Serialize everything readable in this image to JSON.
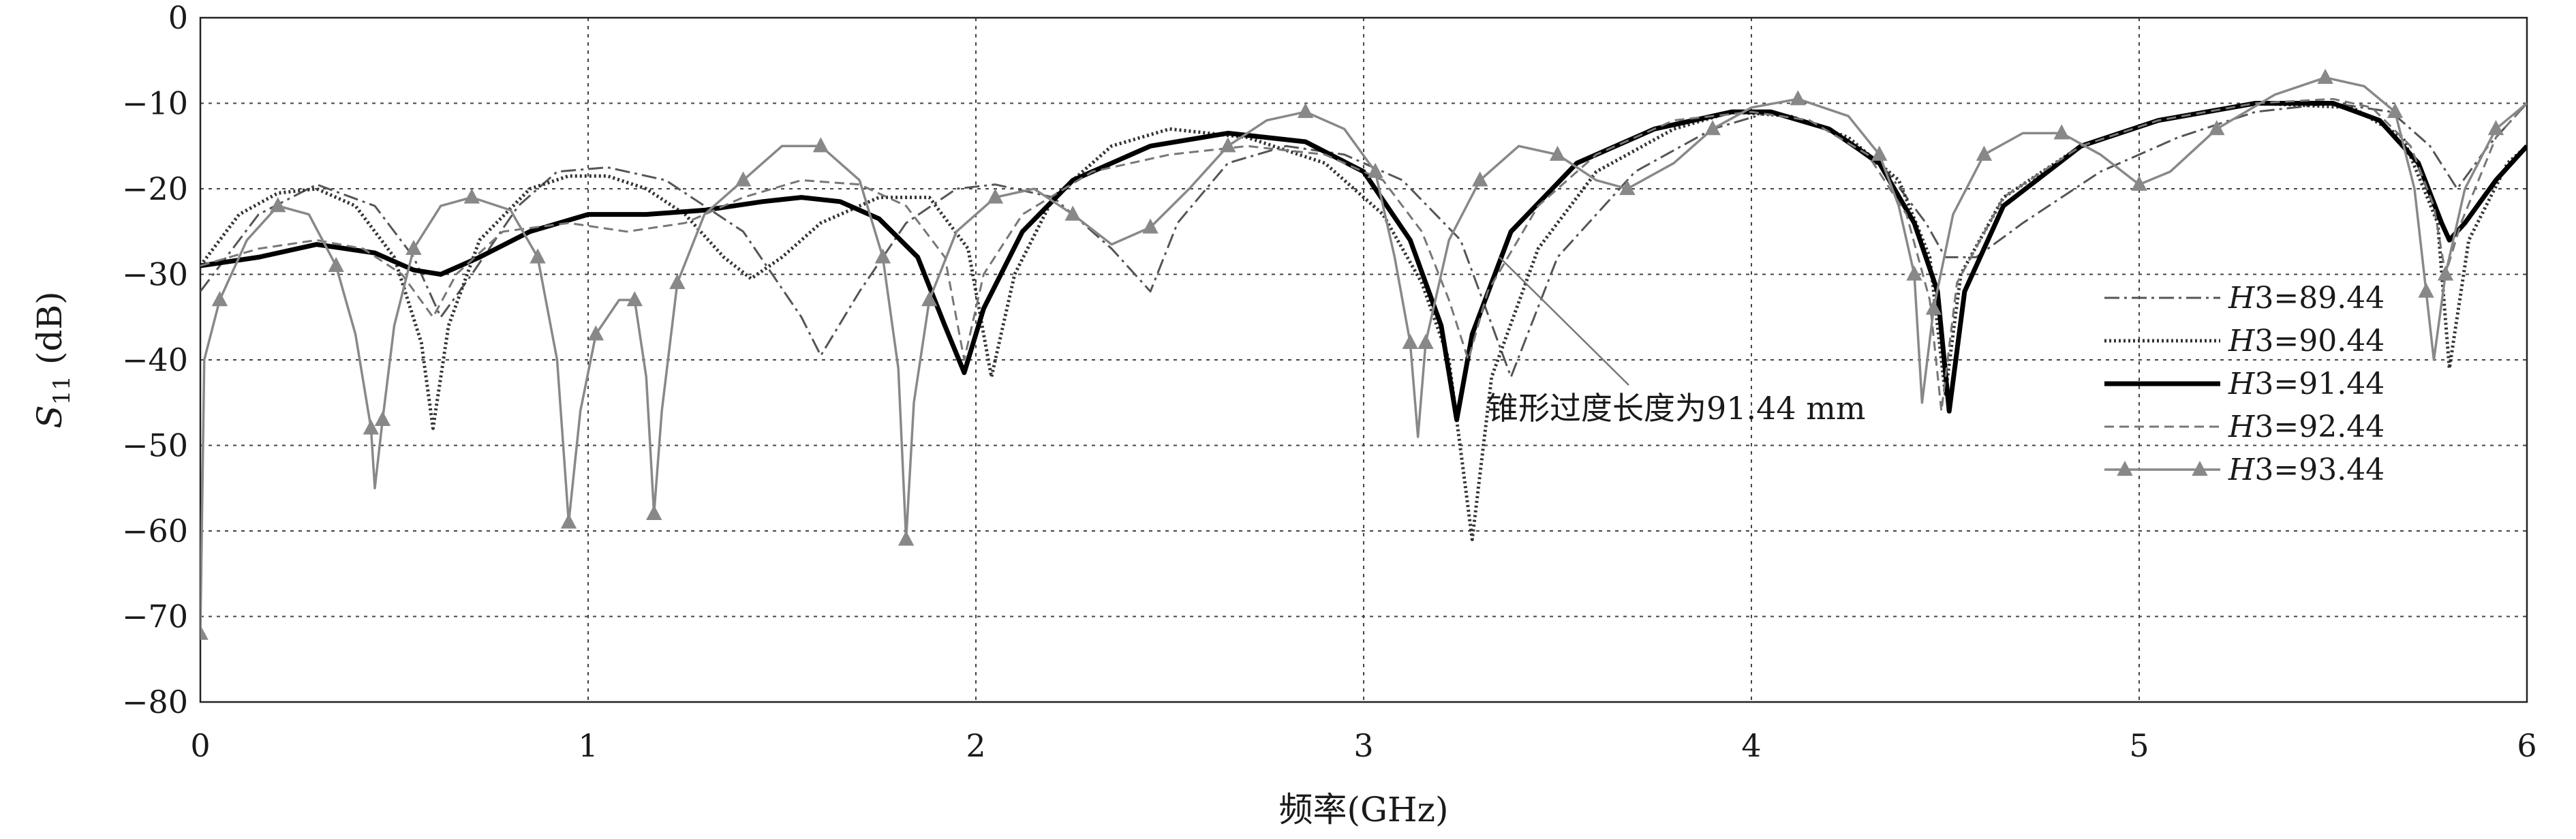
{
  "chart_data": {
    "type": "line",
    "xlabel": "频率(GHz)",
    "ylabel": "S11 (dB)",
    "ylabel_parts": {
      "main": "S",
      "sub": "11",
      "unit": " (dB)"
    },
    "xlim": [
      0,
      6
    ],
    "ylim": [
      -80,
      0
    ],
    "xticks": [
      0,
      1,
      2,
      3,
      4,
      5,
      6
    ],
    "yticks": [
      0,
      -10,
      -20,
      -30,
      -40,
      -50,
      -60,
      -70,
      -80
    ],
    "grid": true,
    "legend_position": "right",
    "annotation": {
      "text": "锥形过度长度为91.44 mm",
      "points_to": {
        "x": 3.35,
        "y": -28
      }
    },
    "series": [
      {
        "name": "H3=89.44",
        "legend_parts": {
          "italic": "H",
          "rest": "3=89.44"
        },
        "color": "#555555",
        "style": "dashdot",
        "points": [
          [
            0,
            -32
          ],
          [
            0.15,
            -23
          ],
          [
            0.3,
            -19.5
          ],
          [
            0.45,
            -22
          ],
          [
            0.55,
            -28
          ],
          [
            0.62,
            -35
          ],
          [
            0.7,
            -30
          ],
          [
            0.82,
            -22
          ],
          [
            0.92,
            -18
          ],
          [
            1.05,
            -17.5
          ],
          [
            1.2,
            -19
          ],
          [
            1.4,
            -25
          ],
          [
            1.55,
            -35
          ],
          [
            1.6,
            -39.5
          ],
          [
            1.7,
            -32
          ],
          [
            1.82,
            -24
          ],
          [
            1.95,
            -20
          ],
          [
            2.05,
            -19.5
          ],
          [
            2.2,
            -21
          ],
          [
            2.35,
            -27
          ],
          [
            2.45,
            -32
          ],
          [
            2.52,
            -24
          ],
          [
            2.65,
            -17
          ],
          [
            2.8,
            -15
          ],
          [
            2.95,
            -16
          ],
          [
            3.1,
            -19
          ],
          [
            3.25,
            -26
          ],
          [
            3.38,
            -42
          ],
          [
            3.5,
            -28
          ],
          [
            3.7,
            -18
          ],
          [
            3.9,
            -13
          ],
          [
            4.05,
            -11
          ],
          [
            4.2,
            -13
          ],
          [
            4.35,
            -18
          ],
          [
            4.45,
            -24
          ],
          [
            4.5,
            -28
          ],
          [
            4.58,
            -28
          ],
          [
            4.7,
            -24
          ],
          [
            4.9,
            -18
          ],
          [
            5.1,
            -14
          ],
          [
            5.3,
            -11
          ],
          [
            5.5,
            -10
          ],
          [
            5.65,
            -11
          ],
          [
            5.75,
            -15
          ],
          [
            5.82,
            -20
          ],
          [
            5.9,
            -15
          ],
          [
            6,
            -10
          ]
        ]
      },
      {
        "name": "H3=90.44",
        "legend_parts": {
          "italic": "H",
          "rest": "3=90.44"
        },
        "color": "#333333",
        "style": "dotted",
        "points": [
          [
            0,
            -29
          ],
          [
            0.1,
            -23
          ],
          [
            0.2,
            -20.5
          ],
          [
            0.3,
            -20
          ],
          [
            0.4,
            -22
          ],
          [
            0.5,
            -28
          ],
          [
            0.57,
            -38
          ],
          [
            0.6,
            -48
          ],
          [
            0.64,
            -36
          ],
          [
            0.72,
            -26
          ],
          [
            0.85,
            -20
          ],
          [
            0.95,
            -18.5
          ],
          [
            1.05,
            -18.5
          ],
          [
            1.15,
            -20
          ],
          [
            1.25,
            -23
          ],
          [
            1.35,
            -28
          ],
          [
            1.42,
            -30.5
          ],
          [
            1.5,
            -28
          ],
          [
            1.6,
            -24
          ],
          [
            1.75,
            -21
          ],
          [
            1.88,
            -21
          ],
          [
            1.98,
            -27
          ],
          [
            2.04,
            -42
          ],
          [
            2.1,
            -30
          ],
          [
            2.2,
            -21
          ],
          [
            2.35,
            -15
          ],
          [
            2.5,
            -13
          ],
          [
            2.7,
            -14
          ],
          [
            2.9,
            -17
          ],
          [
            3.05,
            -23
          ],
          [
            3.15,
            -31
          ],
          [
            3.22,
            -40
          ],
          [
            3.28,
            -61
          ],
          [
            3.33,
            -42
          ],
          [
            3.45,
            -27
          ],
          [
            3.6,
            -18
          ],
          [
            3.8,
            -13
          ],
          [
            3.95,
            -11
          ],
          [
            4.1,
            -11.5
          ],
          [
            4.25,
            -14
          ],
          [
            4.38,
            -19
          ],
          [
            4.46,
            -28
          ],
          [
            4.5,
            -44
          ],
          [
            4.54,
            -30
          ],
          [
            4.65,
            -21
          ],
          [
            4.85,
            -15
          ],
          [
            5.05,
            -12
          ],
          [
            5.3,
            -10
          ],
          [
            5.55,
            -10.5
          ],
          [
            5.68,
            -14
          ],
          [
            5.77,
            -24
          ],
          [
            5.8,
            -41
          ],
          [
            5.85,
            -26
          ],
          [
            5.95,
            -17
          ],
          [
            6,
            -15
          ]
        ]
      },
      {
        "name": "H3=91.44",
        "legend_parts": {
          "italic": "H",
          "rest": "3=91.44"
        },
        "color": "#000000",
        "style": "thick",
        "points": [
          [
            0,
            -29
          ],
          [
            0.15,
            -28
          ],
          [
            0.3,
            -26.5
          ],
          [
            0.45,
            -27.5
          ],
          [
            0.55,
            -29.5
          ],
          [
            0.62,
            -30
          ],
          [
            0.72,
            -28
          ],
          [
            0.85,
            -25
          ],
          [
            1.0,
            -23
          ],
          [
            1.15,
            -23
          ],
          [
            1.3,
            -22.5
          ],
          [
            1.45,
            -21.5
          ],
          [
            1.55,
            -21
          ],
          [
            1.65,
            -21.5
          ],
          [
            1.75,
            -23.5
          ],
          [
            1.85,
            -28
          ],
          [
            1.92,
            -36
          ],
          [
            1.97,
            -41.5
          ],
          [
            2.02,
            -34
          ],
          [
            2.12,
            -25
          ],
          [
            2.25,
            -19
          ],
          [
            2.45,
            -15
          ],
          [
            2.65,
            -13.5
          ],
          [
            2.85,
            -14.5
          ],
          [
            3.0,
            -18
          ],
          [
            3.12,
            -26
          ],
          [
            3.2,
            -36
          ],
          [
            3.24,
            -47
          ],
          [
            3.28,
            -37
          ],
          [
            3.38,
            -25
          ],
          [
            3.55,
            -17
          ],
          [
            3.75,
            -13
          ],
          [
            3.95,
            -11
          ],
          [
            4.05,
            -11
          ],
          [
            4.2,
            -13
          ],
          [
            4.33,
            -17
          ],
          [
            4.42,
            -24
          ],
          [
            4.48,
            -32
          ],
          [
            4.51,
            -46
          ],
          [
            4.55,
            -32
          ],
          [
            4.65,
            -22
          ],
          [
            4.85,
            -15
          ],
          [
            5.05,
            -12
          ],
          [
            5.3,
            -10
          ],
          [
            5.5,
            -10
          ],
          [
            5.62,
            -12
          ],
          [
            5.72,
            -17
          ],
          [
            5.78,
            -24
          ],
          [
            5.8,
            -26
          ],
          [
            5.84,
            -24
          ],
          [
            5.92,
            -19
          ],
          [
            6,
            -15
          ]
        ]
      },
      {
        "name": "H3=92.44",
        "legend_parts": {
          "italic": "H",
          "rest": "3=92.44"
        },
        "color": "#777777",
        "style": "dashed",
        "points": [
          [
            0,
            -29
          ],
          [
            0.15,
            -27
          ],
          [
            0.3,
            -26
          ],
          [
            0.42,
            -27
          ],
          [
            0.52,
            -30
          ],
          [
            0.6,
            -35
          ],
          [
            0.66,
            -30
          ],
          [
            0.78,
            -25
          ],
          [
            0.95,
            -24
          ],
          [
            1.1,
            -25
          ],
          [
            1.25,
            -24
          ],
          [
            1.4,
            -21
          ],
          [
            1.55,
            -19
          ],
          [
            1.7,
            -19.5
          ],
          [
            1.82,
            -22
          ],
          [
            1.92,
            -28
          ],
          [
            1.97,
            -40
          ],
          [
            2.02,
            -30
          ],
          [
            2.12,
            -23
          ],
          [
            2.3,
            -18
          ],
          [
            2.5,
            -16
          ],
          [
            2.7,
            -15
          ],
          [
            2.9,
            -16
          ],
          [
            3.05,
            -19
          ],
          [
            3.15,
            -25
          ],
          [
            3.22,
            -33
          ],
          [
            3.27,
            -40
          ],
          [
            3.32,
            -32
          ],
          [
            3.45,
            -22
          ],
          [
            3.6,
            -16
          ],
          [
            3.8,
            -12
          ],
          [
            4.0,
            -11
          ],
          [
            4.15,
            -12
          ],
          [
            4.3,
            -16
          ],
          [
            4.4,
            -23
          ],
          [
            4.46,
            -33
          ],
          [
            4.49,
            -46
          ],
          [
            4.53,
            -31
          ],
          [
            4.65,
            -21
          ],
          [
            4.85,
            -15
          ],
          [
            5.05,
            -12
          ],
          [
            5.3,
            -10
          ],
          [
            5.5,
            -9.5
          ],
          [
            5.6,
            -10.5
          ],
          [
            5.7,
            -15
          ],
          [
            5.76,
            -22
          ],
          [
            5.79,
            -30
          ],
          [
            5.83,
            -24
          ],
          [
            5.92,
            -14
          ],
          [
            6,
            -10
          ]
        ]
      },
      {
        "name": "H3=93.44",
        "legend_parts": {
          "italic": "H",
          "rest": "3=93.44"
        },
        "color": "#888888",
        "style": "triangle",
        "points": [
          [
            0,
            -72
          ],
          [
            0.01,
            -40
          ],
          [
            0.05,
            -33
          ],
          [
            0.12,
            -26
          ],
          [
            0.2,
            -22
          ],
          [
            0.28,
            -23
          ],
          [
            0.35,
            -29
          ],
          [
            0.4,
            -37
          ],
          [
            0.44,
            -48
          ],
          [
            0.45,
            -55
          ],
          [
            0.47,
            -47
          ],
          [
            0.5,
            -36
          ],
          [
            0.55,
            -27
          ],
          [
            0.62,
            -22
          ],
          [
            0.7,
            -21
          ],
          [
            0.8,
            -22.5
          ],
          [
            0.87,
            -28
          ],
          [
            0.92,
            -40
          ],
          [
            0.95,
            -59
          ],
          [
            0.98,
            -46
          ],
          [
            1.02,
            -37
          ],
          [
            1.08,
            -33
          ],
          [
            1.12,
            -33
          ],
          [
            1.15,
            -42
          ],
          [
            1.17,
            -58
          ],
          [
            1.19,
            -46
          ],
          [
            1.23,
            -31
          ],
          [
            1.3,
            -23
          ],
          [
            1.4,
            -19
          ],
          [
            1.5,
            -15
          ],
          [
            1.6,
            -15
          ],
          [
            1.7,
            -19
          ],
          [
            1.76,
            -28
          ],
          [
            1.8,
            -41
          ],
          [
            1.82,
            -61
          ],
          [
            1.84,
            -45
          ],
          [
            1.88,
            -33
          ],
          [
            1.95,
            -25
          ],
          [
            2.05,
            -21
          ],
          [
            2.15,
            -20
          ],
          [
            2.25,
            -23
          ],
          [
            2.35,
            -26.5
          ],
          [
            2.45,
            -24.5
          ],
          [
            2.55,
            -20
          ],
          [
            2.65,
            -15
          ],
          [
            2.75,
            -12
          ],
          [
            2.85,
            -11
          ],
          [
            2.95,
            -13
          ],
          [
            3.03,
            -18
          ],
          [
            3.08,
            -28
          ],
          [
            3.12,
            -38
          ],
          [
            3.14,
            -49
          ],
          [
            3.16,
            -38
          ],
          [
            3.22,
            -26
          ],
          [
            3.3,
            -19
          ],
          [
            3.4,
            -15
          ],
          [
            3.5,
            -16
          ],
          [
            3.6,
            -19
          ],
          [
            3.68,
            -20
          ],
          [
            3.8,
            -17
          ],
          [
            3.9,
            -13
          ],
          [
            4.0,
            -10.5
          ],
          [
            4.12,
            -9.5
          ],
          [
            4.25,
            -11.5
          ],
          [
            4.33,
            -16
          ],
          [
            4.38,
            -22
          ],
          [
            4.42,
            -30
          ],
          [
            4.44,
            -45
          ],
          [
            4.47,
            -34
          ],
          [
            4.52,
            -23
          ],
          [
            4.6,
            -16
          ],
          [
            4.7,
            -13.5
          ],
          [
            4.8,
            -13.5
          ],
          [
            4.9,
            -16
          ],
          [
            5.0,
            -19.5
          ],
          [
            5.08,
            -18
          ],
          [
            5.2,
            -13
          ],
          [
            5.35,
            -9
          ],
          [
            5.48,
            -7
          ],
          [
            5.58,
            -8
          ],
          [
            5.66,
            -11
          ],
          [
            5.71,
            -20
          ],
          [
            5.74,
            -32
          ],
          [
            5.76,
            -40
          ],
          [
            5.79,
            -30
          ],
          [
            5.84,
            -20
          ],
          [
            5.92,
            -13
          ],
          [
            6,
            -10
          ]
        ]
      }
    ]
  }
}
